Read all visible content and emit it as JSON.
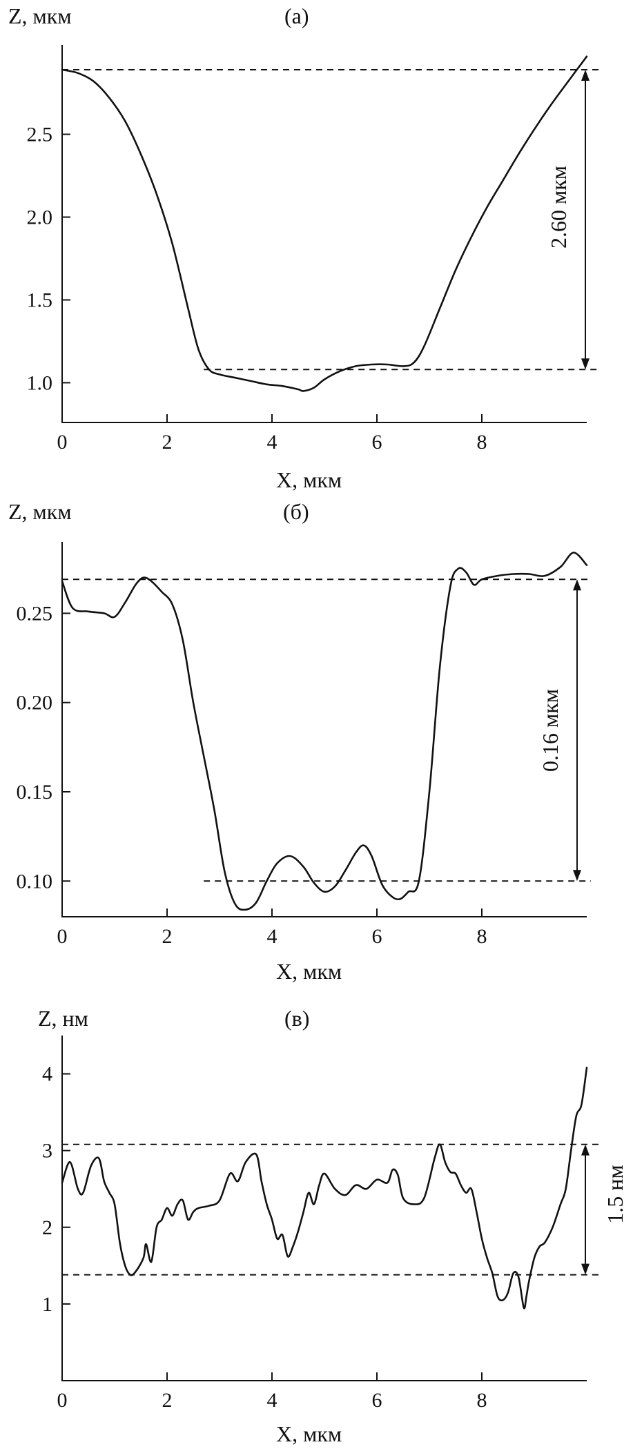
{
  "chart_data": [
    {
      "type": "line",
      "panel_label": "(а)",
      "ylabel": "Z, мкм",
      "xlabel": "X, мкм",
      "xlim": [
        0,
        10
      ],
      "ylim": [
        0.76,
        3.04
      ],
      "xticks": [
        0,
        2,
        4,
        6,
        8
      ],
      "yticks": [
        1.0,
        1.5,
        2.0,
        2.5
      ],
      "ytick_labels": [
        "1.0",
        "1.5",
        "2.0",
        "2.5"
      ],
      "annotation": "2.60 мкм",
      "upper_level": 2.89,
      "lower_level": 1.08,
      "lower_x_start": 2.7,
      "x": [
        0,
        0.3,
        0.6,
        0.9,
        1.2,
        1.5,
        1.8,
        2.1,
        2.4,
        2.6,
        2.8,
        3.0,
        3.3,
        3.6,
        3.9,
        4.2,
        4.5,
        4.6,
        4.8,
        5.0,
        5.3,
        5.6,
        5.9,
        6.2,
        6.5,
        6.7,
        6.9,
        7.2,
        7.5,
        7.8,
        8.1,
        8.4,
        8.7,
        9.0,
        9.3,
        9.6,
        10.0
      ],
      "y": [
        2.89,
        2.87,
        2.82,
        2.72,
        2.58,
        2.38,
        2.14,
        1.84,
        1.45,
        1.2,
        1.08,
        1.05,
        1.03,
        1.01,
        0.99,
        0.98,
        0.96,
        0.95,
        0.97,
        1.02,
        1.07,
        1.1,
        1.11,
        1.11,
        1.1,
        1.12,
        1.22,
        1.45,
        1.68,
        1.88,
        2.06,
        2.22,
        2.38,
        2.53,
        2.67,
        2.8,
        2.97
      ]
    },
    {
      "type": "line",
      "panel_label": "(б)",
      "ylabel": "Z, мкм",
      "xlabel": "X, мкм",
      "xlim": [
        0,
        10
      ],
      "ylim": [
        0.08,
        0.29
      ],
      "xticks": [
        0,
        2,
        4,
        6,
        8
      ],
      "yticks": [
        0.1,
        0.15,
        0.2,
        0.25
      ],
      "ytick_labels": [
        "0.10",
        "0.15",
        "0.20",
        "0.25"
      ],
      "annotation": "0.16 мкм",
      "upper_level": 0.269,
      "lower_level": 0.1,
      "lower_x_start": 2.7,
      "x": [
        0,
        0.2,
        0.5,
        0.8,
        1.0,
        1.2,
        1.4,
        1.55,
        1.7,
        1.9,
        2.1,
        2.3,
        2.5,
        2.7,
        2.9,
        3.1,
        3.3,
        3.5,
        3.7,
        3.9,
        4.1,
        4.35,
        4.6,
        4.8,
        5.0,
        5.2,
        5.4,
        5.6,
        5.75,
        5.9,
        6.1,
        6.3,
        6.45,
        6.6,
        6.8,
        7.0,
        7.2,
        7.4,
        7.55,
        7.7,
        7.85,
        8.0,
        8.3,
        8.6,
        8.9,
        9.2,
        9.5,
        9.75,
        10.0
      ],
      "y": [
        0.268,
        0.253,
        0.251,
        0.25,
        0.248,
        0.256,
        0.266,
        0.27,
        0.268,
        0.262,
        0.255,
        0.235,
        0.2,
        0.17,
        0.14,
        0.105,
        0.087,
        0.084,
        0.088,
        0.1,
        0.11,
        0.114,
        0.108,
        0.099,
        0.094,
        0.097,
        0.106,
        0.116,
        0.12,
        0.114,
        0.098,
        0.091,
        0.09,
        0.094,
        0.1,
        0.15,
        0.22,
        0.265,
        0.275,
        0.273,
        0.266,
        0.269,
        0.271,
        0.272,
        0.272,
        0.271,
        0.276,
        0.284,
        0.277
      ]
    },
    {
      "type": "line",
      "panel_label": "(в)",
      "ylabel": "Z, нм",
      "xlabel": "X, мкм",
      "xlim": [
        0,
        10
      ],
      "ylim": [
        0,
        4.5
      ],
      "xticks": [
        0,
        2,
        4,
        6,
        8
      ],
      "yticks": [
        1,
        2,
        3,
        4
      ],
      "ytick_labels": [
        "1",
        "2",
        "3",
        "4"
      ],
      "annotation": "1.5 нм",
      "upper_level": 3.08,
      "lower_level": 1.38,
      "lower_x_start": 0,
      "x": [
        0,
        0.15,
        0.3,
        0.4,
        0.55,
        0.7,
        0.8,
        0.9,
        1.0,
        1.1,
        1.2,
        1.3,
        1.4,
        1.55,
        1.6,
        1.7,
        1.8,
        1.9,
        2.0,
        2.1,
        2.2,
        2.3,
        2.4,
        2.5,
        2.6,
        2.8,
        3.0,
        3.2,
        3.35,
        3.5,
        3.7,
        3.8,
        3.9,
        4.0,
        4.1,
        4.2,
        4.3,
        4.4,
        4.5,
        4.6,
        4.7,
        4.8,
        4.9,
        5.0,
        5.2,
        5.4,
        5.6,
        5.8,
        6.0,
        6.2,
        6.3,
        6.4,
        6.5,
        6.7,
        6.9,
        7.1,
        7.2,
        7.3,
        7.4,
        7.5,
        7.6,
        7.7,
        7.8,
        7.9,
        8.0,
        8.1,
        8.2,
        8.3,
        8.4,
        8.5,
        8.6,
        8.7,
        8.8,
        8.85,
        8.9,
        9.0,
        9.1,
        9.2,
        9.35,
        9.5,
        9.6,
        9.7,
        9.8,
        9.9,
        10.0
      ],
      "y": [
        2.58,
        2.85,
        2.5,
        2.45,
        2.8,
        2.9,
        2.6,
        2.45,
        2.3,
        1.8,
        1.5,
        1.38,
        1.42,
        1.6,
        1.78,
        1.55,
        2.0,
        2.1,
        2.25,
        2.15,
        2.3,
        2.35,
        2.1,
        2.2,
        2.25,
        2.28,
        2.35,
        2.7,
        2.6,
        2.85,
        2.95,
        2.6,
        2.3,
        2.1,
        1.85,
        1.9,
        1.62,
        1.75,
        1.95,
        2.2,
        2.45,
        2.3,
        2.55,
        2.7,
        2.5,
        2.42,
        2.55,
        2.5,
        2.62,
        2.58,
        2.75,
        2.68,
        2.38,
        2.3,
        2.38,
        2.9,
        3.08,
        2.85,
        2.72,
        2.7,
        2.55,
        2.45,
        2.5,
        2.2,
        1.85,
        1.6,
        1.4,
        1.1,
        1.05,
        1.15,
        1.4,
        1.35,
        0.95,
        1.1,
        1.3,
        1.6,
        1.75,
        1.8,
        2.0,
        2.3,
        2.5,
        3.0,
        3.45,
        3.6,
        4.08
      ]
    }
  ]
}
